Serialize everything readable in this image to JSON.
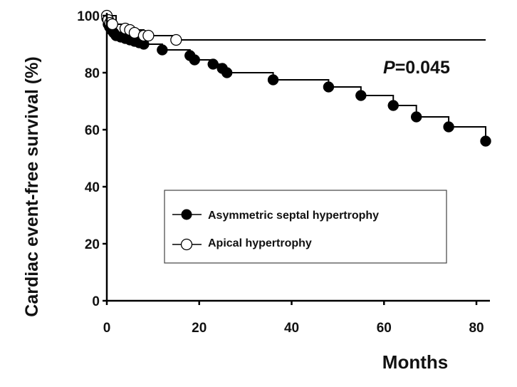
{
  "chart_data": {
    "type": "line",
    "title": "",
    "xlabel": "Months",
    "ylabel": "Cardiac event-free survival (%)",
    "xlim": [
      0,
      82
    ],
    "ylim": [
      0,
      100
    ],
    "xticks": [
      0,
      20,
      40,
      60,
      80
    ],
    "yticks": [
      0,
      20,
      40,
      60,
      80,
      100
    ],
    "annotation": {
      "prefix": "P",
      "text": "=0.045"
    },
    "legend": {
      "position": "center"
    },
    "series": [
      {
        "name": "Asymmetric septal hypertrophy",
        "marker": "filled-circle",
        "color": "#000000",
        "step_x": [
          0,
          0.3,
          0.6,
          1,
          1.5,
          2,
          3,
          4,
          5,
          6,
          7,
          8,
          12,
          18,
          19,
          23,
          25,
          26,
          36,
          48,
          55,
          62,
          67,
          74,
          82
        ],
        "step_y": [
          99,
          97,
          96,
          95,
          94,
          93,
          92.5,
          92,
          91.5,
          91,
          90.5,
          90,
          88,
          86,
          84.5,
          83,
          81.5,
          80,
          77.5,
          75,
          72,
          68.5,
          64.5,
          61,
          56
        ],
        "censor_x": [
          0,
          0.3,
          0.6,
          1,
          1.5,
          2,
          3,
          4,
          5,
          6,
          7,
          8,
          12,
          18,
          19,
          23,
          25,
          26,
          36,
          48,
          55,
          62,
          67,
          74,
          82
        ],
        "censor_y": [
          99,
          97,
          96,
          95,
          94,
          93,
          92.5,
          92,
          91.5,
          91,
          90.5,
          90,
          88,
          86,
          84.5,
          83,
          81.5,
          80,
          77.5,
          75,
          72,
          68.5,
          64.5,
          61,
          56
        ]
      },
      {
        "name": "Apical hypertrophy",
        "marker": "open-circle",
        "color": "#000000",
        "step_x": [
          0,
          2,
          4,
          8,
          15,
          82
        ],
        "step_y": [
          100,
          97,
          95,
          93,
          91.5,
          91.5
        ],
        "censor_x": [
          0,
          0.3,
          0.7,
          1.2,
          4,
          5,
          6,
          8,
          9,
          15
        ],
        "censor_y": [
          100,
          98.5,
          97.5,
          97,
          95.5,
          95,
          94,
          93,
          93,
          91.5
        ]
      }
    ]
  }
}
